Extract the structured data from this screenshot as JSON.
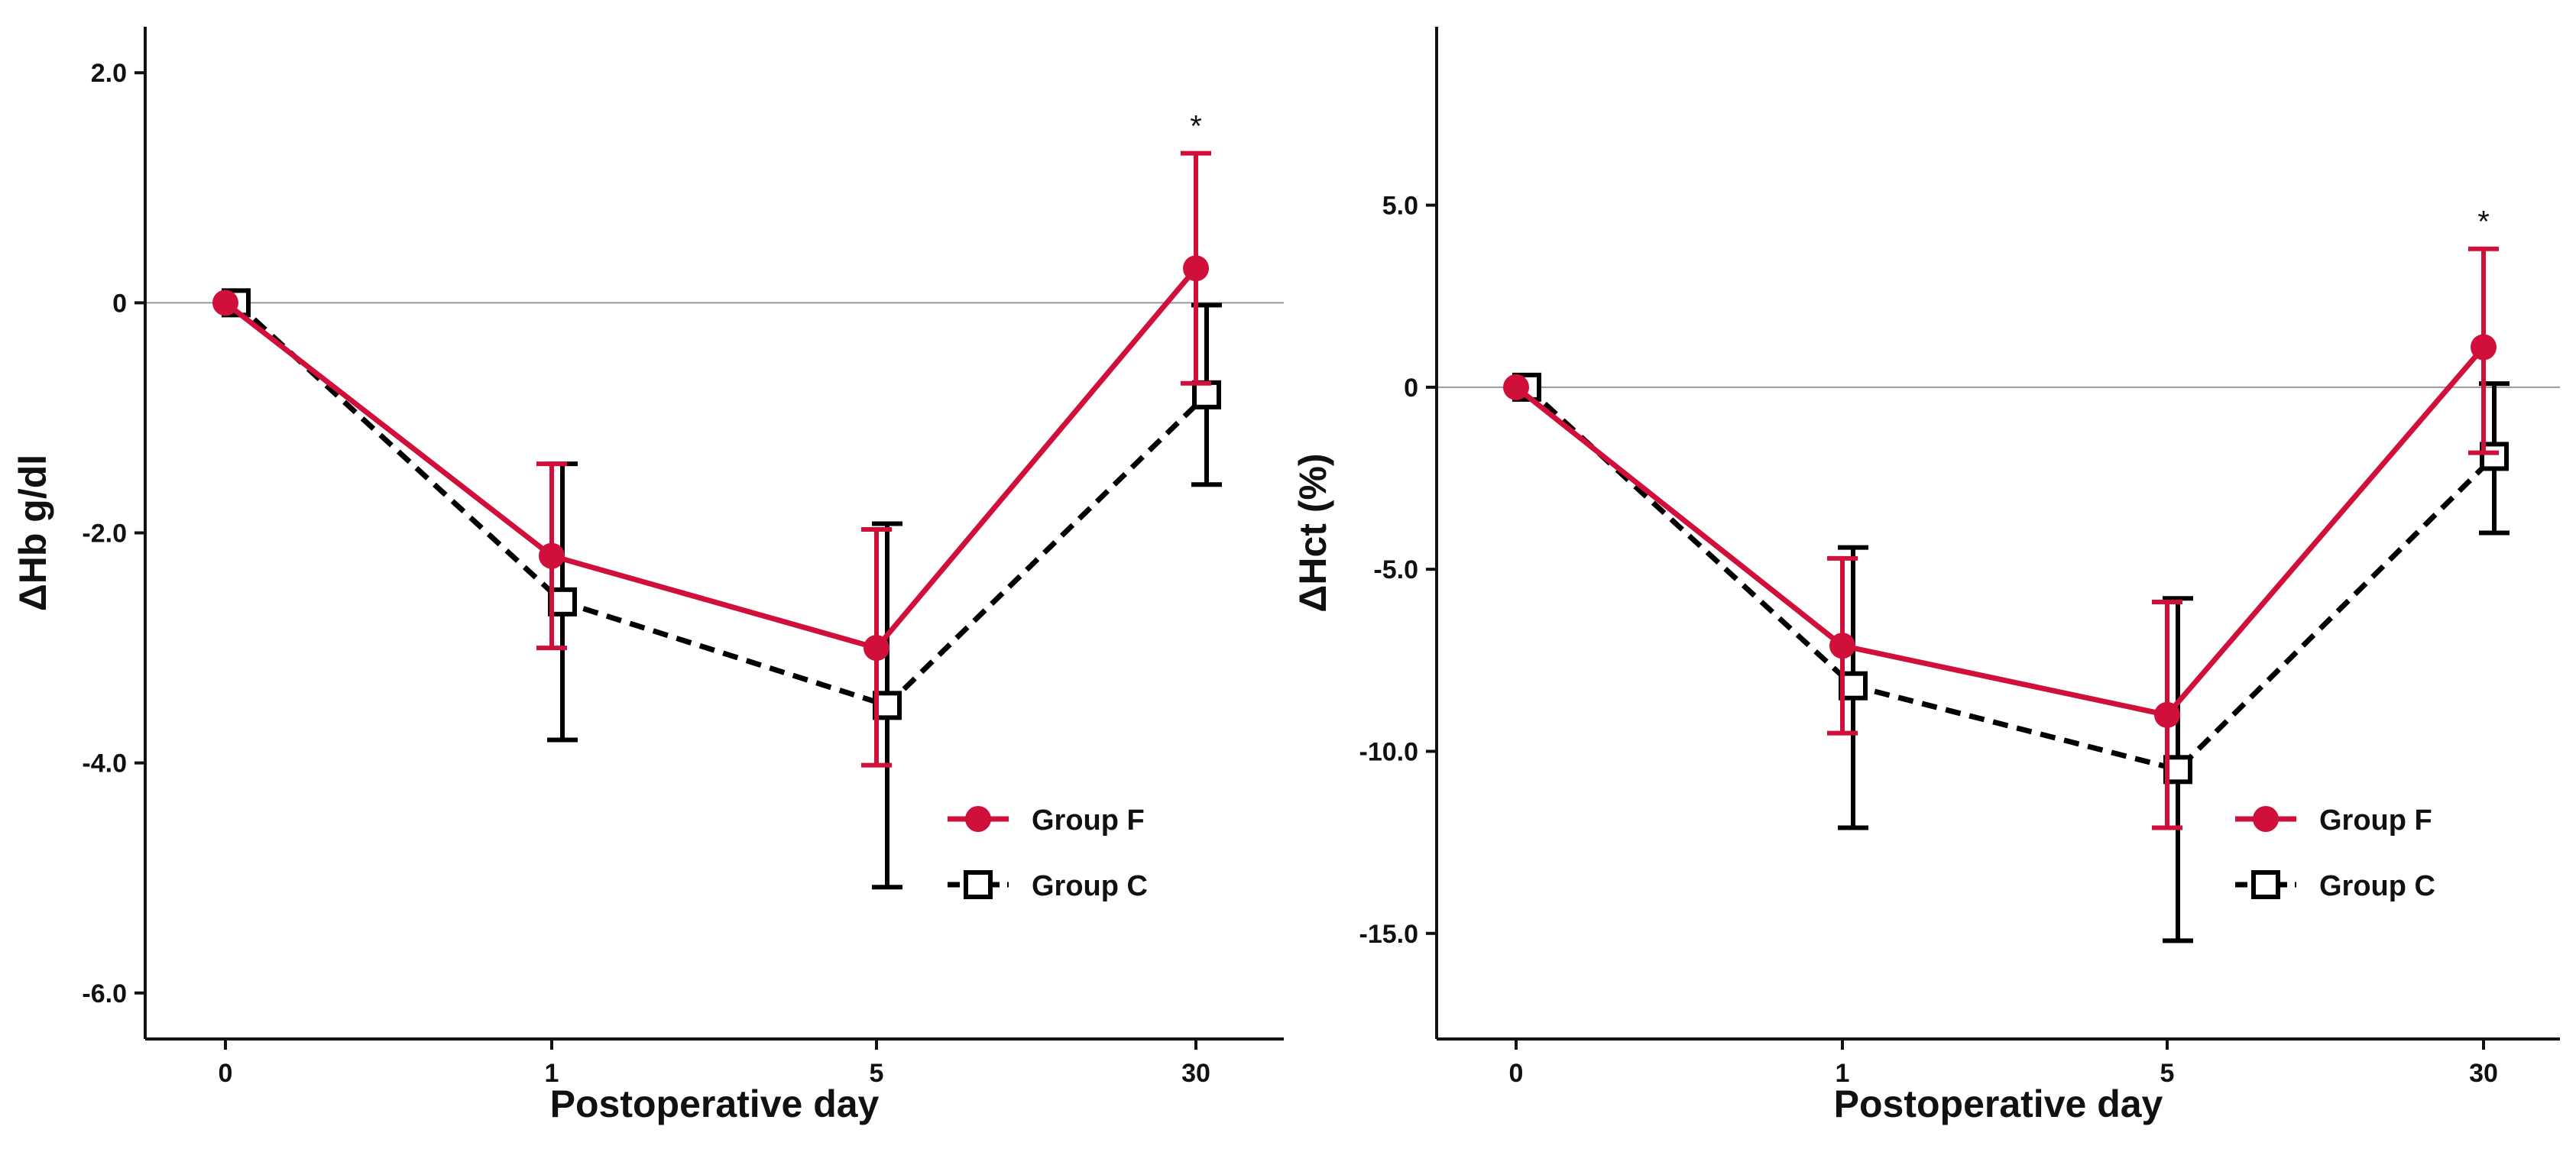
{
  "colors": {
    "group_f": "#d0103a",
    "group_c": "#000000",
    "axis": "#111111",
    "zero_line": "#999999"
  },
  "chart_data": [
    {
      "type": "line",
      "title": "",
      "xlabel": "Postoperative day",
      "ylabel": "ΔHb g/dl",
      "categories": [
        "0",
        "1",
        "5",
        "30"
      ],
      "ylim": [
        -6.4,
        2.4
      ],
      "yticks": [
        2.0,
        0,
        -2.0,
        -4.0,
        -6.0
      ],
      "ytick_labels": [
        "2.0",
        "0",
        "-2.0",
        "-4.0",
        "-6.0"
      ],
      "series": [
        {
          "name": "Group F",
          "marker": "filled-circle",
          "line": "solid",
          "values": [
            0,
            -2.2,
            -3.0,
            0.3
          ],
          "error_low": [
            null,
            -3.0,
            -4.02,
            -0.7
          ],
          "error_high": [
            null,
            -1.4,
            -1.97,
            1.3
          ]
        },
        {
          "name": "Group C",
          "marker": "open-square",
          "line": "dashed",
          "values": [
            0,
            -2.6,
            -3.5,
            -0.8
          ],
          "error_low": [
            null,
            -3.8,
            -5.08,
            -1.58
          ],
          "error_high": [
            null,
            -1.4,
            -1.92,
            -0.02
          ]
        }
      ],
      "annotations": [
        {
          "category": "30",
          "text": "*"
        }
      ],
      "legend": {
        "position": "bottom-right",
        "entries": [
          "Group F",
          "Group C"
        ]
      }
    },
    {
      "type": "line",
      "title": "",
      "xlabel": "Postoperative day",
      "ylabel": "ΔHct (%)",
      "categories": [
        "0",
        "1",
        "5",
        "30"
      ],
      "ylim": [
        -17.9,
        9.9
      ],
      "yticks": [
        5.0,
        0,
        -5.0,
        -10.0,
        -15.0
      ],
      "ytick_labels": [
        "5.0",
        "0",
        "-5.0",
        "-10.0",
        "-15.0"
      ],
      "series": [
        {
          "name": "Group F",
          "marker": "filled-circle",
          "line": "solid",
          "values": [
            0,
            -7.1,
            -9.0,
            1.1
          ],
          "error_low": [
            null,
            -9.5,
            -12.1,
            -1.8
          ],
          "error_high": [
            null,
            -4.7,
            -5.9,
            3.8
          ]
        },
        {
          "name": "Group C",
          "marker": "open-square",
          "line": "dashed",
          "values": [
            0,
            -8.2,
            -10.5,
            -1.9
          ],
          "error_low": [
            null,
            -12.1,
            -15.2,
            -4.0
          ],
          "error_high": [
            null,
            -4.4,
            -5.8,
            0.1
          ]
        }
      ],
      "annotations": [
        {
          "category": "30",
          "text": "*"
        }
      ],
      "legend": {
        "position": "bottom-right",
        "entries": [
          "Group F",
          "Group C"
        ]
      }
    }
  ]
}
